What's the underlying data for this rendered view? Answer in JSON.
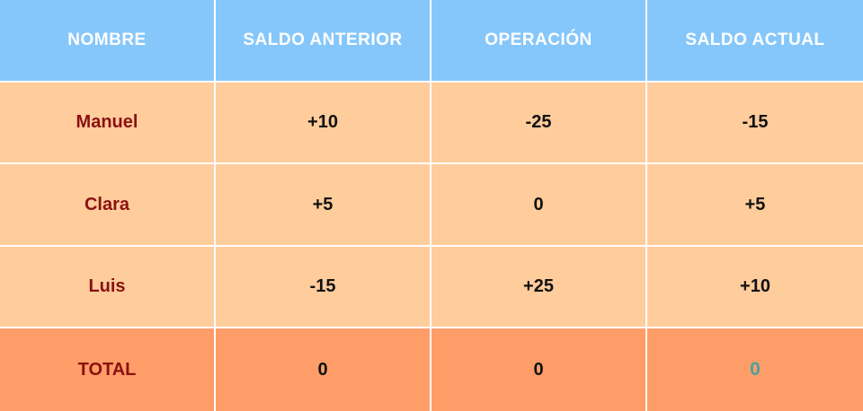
{
  "table": {
    "headers": [
      "NOMBRE",
      "SALDO ANTERIOR",
      "OPERACIÓN",
      "SALDO ACTUAL"
    ],
    "rows": [
      {
        "name": "Manuel",
        "saldo_anterior": "+10",
        "operacion": "-25",
        "saldo_actual": "-15"
      },
      {
        "name": "Clara",
        "saldo_anterior": "+5",
        "operacion": "0",
        "saldo_actual": "+5"
      },
      {
        "name": "Luis",
        "saldo_anterior": "-15",
        "operacion": "+25",
        "saldo_actual": "+10"
      }
    ],
    "total": {
      "name": "TOTAL",
      "saldo_anterior": "0",
      "operacion": "0",
      "saldo_actual": "0"
    }
  },
  "colors": {
    "header_bg": "#86c7fb",
    "row_bg": "#ffcc9c",
    "total_bg": "#ff9d69",
    "name_text": "#8b1010",
    "total_highlight": "#4aa3a0"
  }
}
